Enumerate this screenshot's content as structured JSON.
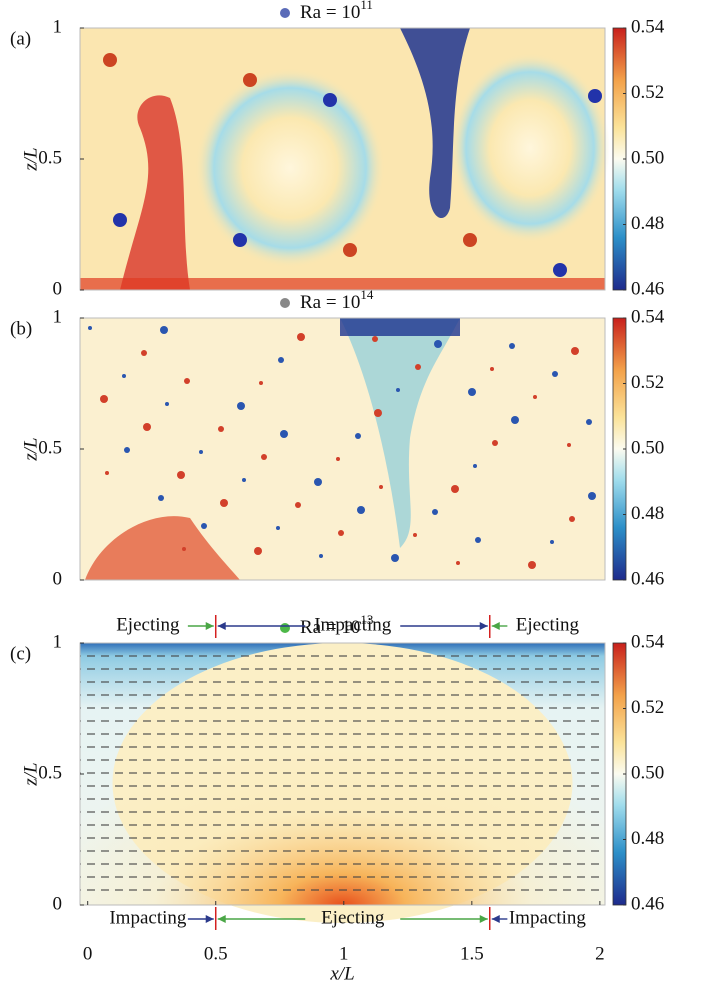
{
  "chart_data": [
    {
      "type": "heatmap",
      "panel": "(a)",
      "title": "Ra = 10",
      "title_exp": "11",
      "marker_color": "#5a6bb8",
      "ylabel": "z/L",
      "ylim": [
        0,
        1
      ],
      "yticks": [
        0,
        0.5,
        1
      ],
      "clim": [
        0.46,
        0.54
      ],
      "cticks": [
        0.46,
        0.48,
        {
          "value": 0.5,
          "label": "0.50"
        },
        0.52,
        0.54
      ]
    },
    {
      "type": "heatmap",
      "panel": "(b)",
      "title": "Ra = 10",
      "title_exp": "14",
      "marker_color": "#888888",
      "ylabel": "z/L",
      "ylim": [
        0,
        1
      ],
      "yticks": [
        0,
        0.5,
        1
      ],
      "clim": [
        0.46,
        0.54
      ],
      "cticks": [
        0.46,
        0.48,
        {
          "value": 0.5,
          "label": "0.50"
        },
        0.52,
        0.54
      ]
    },
    {
      "type": "heatmap",
      "panel": "(c)",
      "title": "Ra = 10",
      "title_exp": "13",
      "marker_color": "#4db848",
      "ylabel": "z/L",
      "ylim": [
        0,
        1
      ],
      "yticks": [
        0,
        0.5,
        1
      ],
      "xlabel": "x/L",
      "xlim": [
        -0.03,
        2.02
      ],
      "xticks": [
        0,
        0.5,
        1,
        1.5,
        2
      ],
      "clim": [
        0.46,
        0.54
      ],
      "cticks": [
        0.46,
        0.48,
        {
          "value": 0.5,
          "label": "0.50"
        },
        0.52,
        0.54
      ],
      "boundaries": [
        0.5,
        1.57
      ],
      "top_labels": [
        "Ejecting",
        "Impacting",
        "Ejecting"
      ],
      "bottom_labels": [
        "Impacting",
        "Ejecting",
        "Impacting"
      ]
    }
  ]
}
